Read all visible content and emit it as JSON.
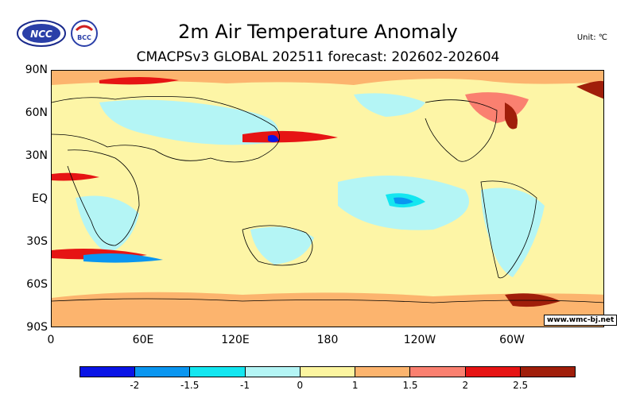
{
  "header": {
    "title": "2m Air Temperature Anomaly",
    "subtitle": "CMACPSv3 GLOBAL 202511 forecast: 202602-202604",
    "unit": "Unit: ℃"
  },
  "logos": {
    "left_text": "NCC",
    "right_text": "BCC"
  },
  "map": {
    "lat_labels": [
      "90N",
      "60N",
      "30N",
      "EQ",
      "30S",
      "60S",
      "90S"
    ],
    "lon_labels": [
      "0",
      "60E",
      "120E",
      "180",
      "120W",
      "60W"
    ],
    "watermark": "www.wmc-bj.net"
  },
  "legend": {
    "colors": [
      "#0a14e6",
      "#0a96f0",
      "#14e6f0",
      "#b4f5f5",
      "#fcf5a0",
      "#fcb46e",
      "#fa8070",
      "#e61414",
      "#a01e0a"
    ],
    "labels": [
      "-2",
      "-1.5",
      "-1",
      "0",
      "1",
      "1.5",
      "2",
      "2.5"
    ]
  }
}
